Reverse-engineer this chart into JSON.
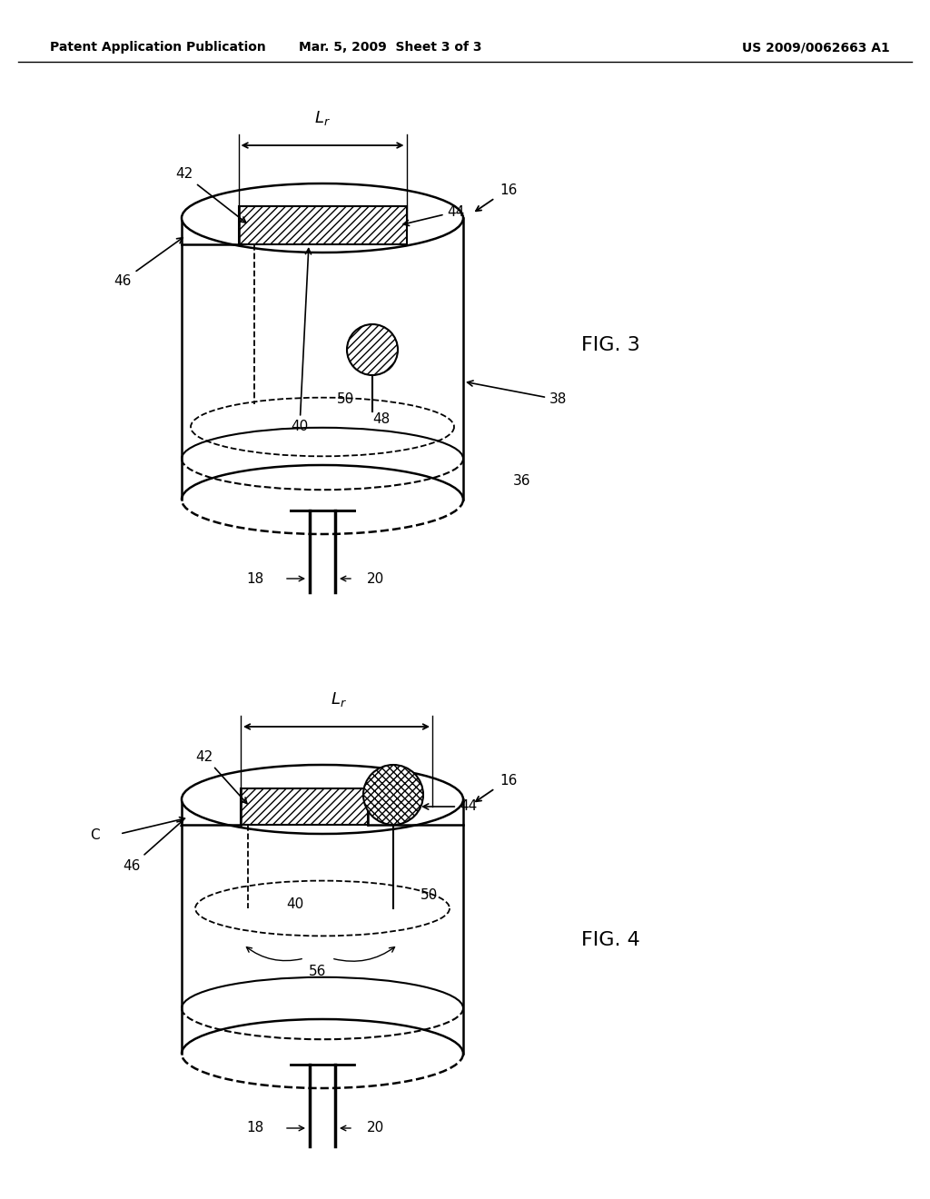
{
  "background_color": "#ffffff",
  "header_left": "Patent Application Publication",
  "header_mid": "Mar. 5, 2009  Sheet 3 of 3",
  "header_right": "US 2009/0062663 A1",
  "fig3_label": "FIG. 3",
  "fig4_label": "FIG. 4"
}
